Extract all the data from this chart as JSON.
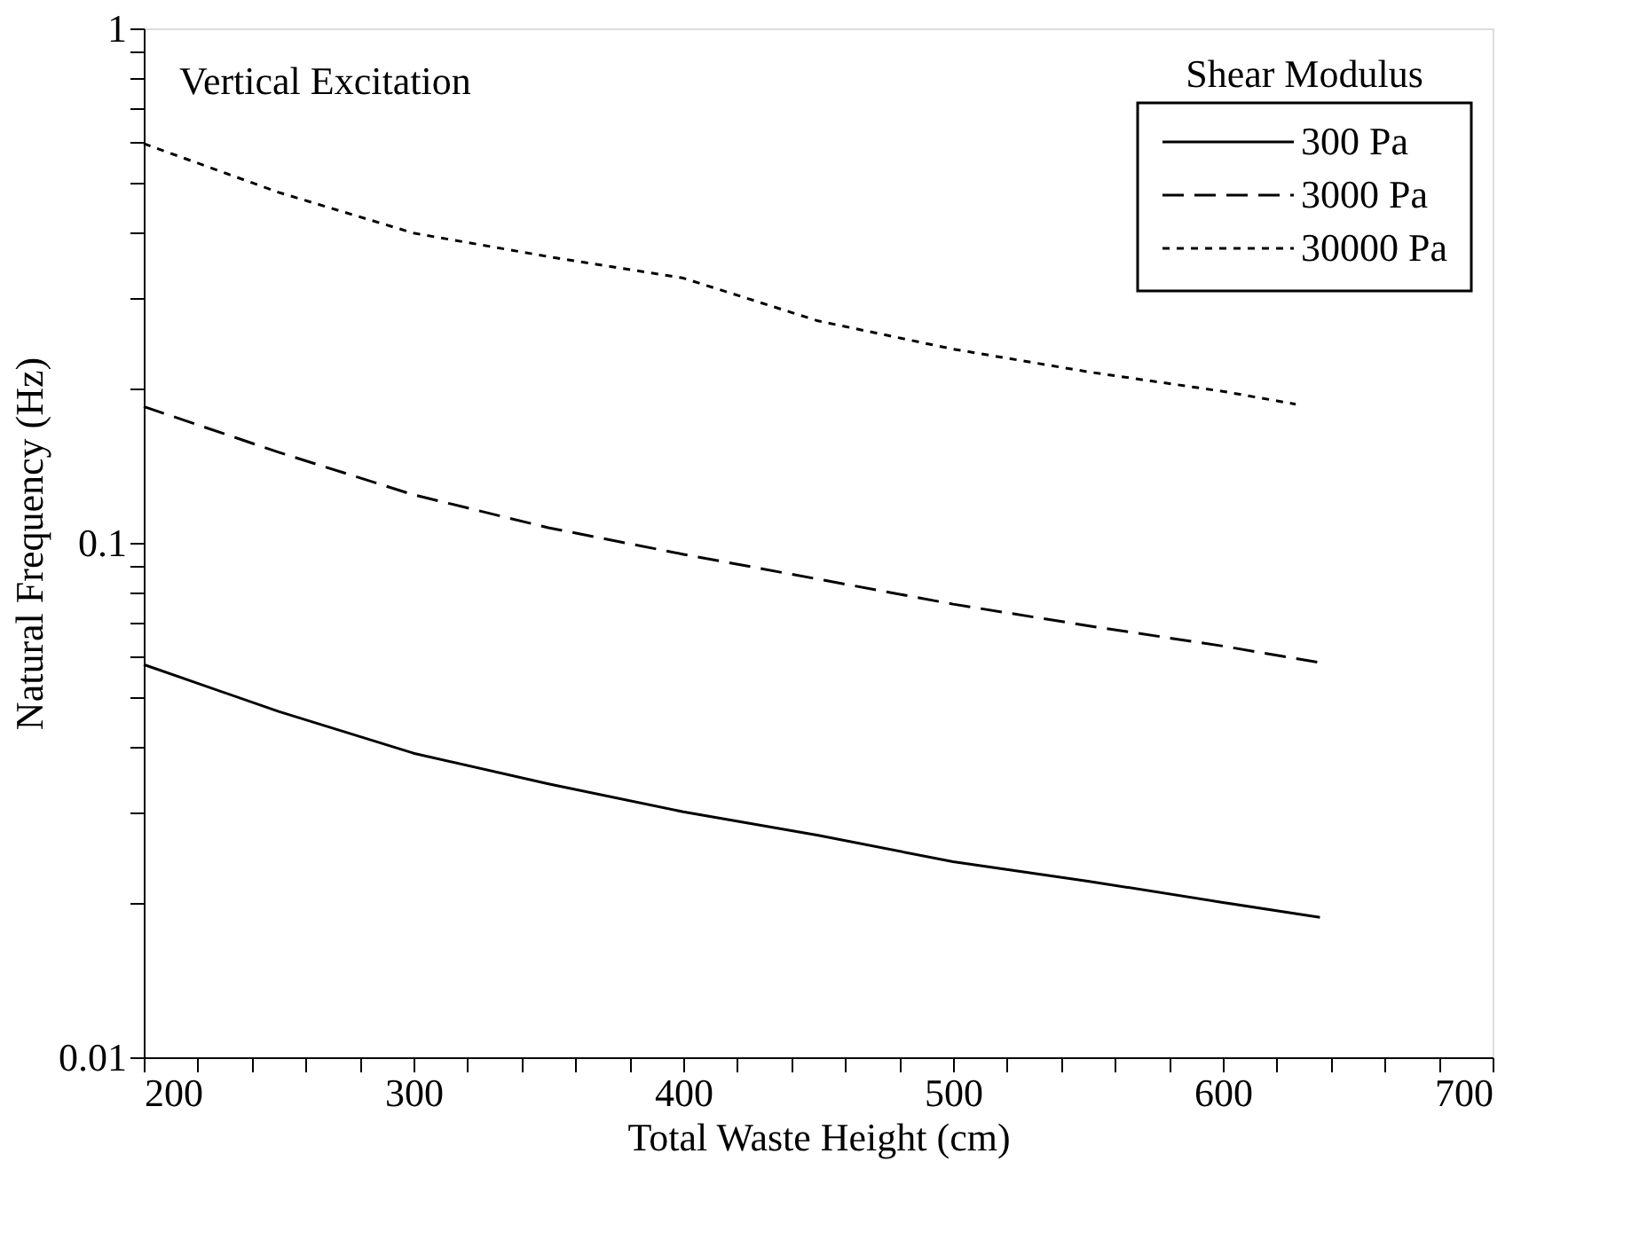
{
  "chart_data": {
    "type": "line",
    "xlabel": "Total Waste Height (cm)",
    "ylabel": "Natural Frequency (Hz)",
    "legend_title": "Shear Modulus",
    "legend": "top right",
    "log": "y",
    "grid": false,
    "marker": "none",
    "annotations": [
      "Vertical Excitation"
    ],
    "xlim": [
      200,
      700
    ],
    "ylim": [
      0.01,
      1
    ],
    "xticks": [
      200,
      {
        "value": 220,
        "label": null
      },
      {
        "value": 240,
        "label": null
      },
      {
        "value": 260,
        "label": null
      },
      {
        "value": 280,
        "label": null
      },
      300,
      {
        "value": 320,
        "label": null
      },
      {
        "value": 340,
        "label": null
      },
      {
        "value": 360,
        "label": null
      },
      {
        "value": 380,
        "label": null
      },
      400,
      {
        "value": 420,
        "label": null
      },
      {
        "value": 440,
        "label": null
      },
      {
        "value": 460,
        "label": null
      },
      {
        "value": 480,
        "label": null
      },
      500,
      {
        "value": 520,
        "label": null
      },
      {
        "value": 540,
        "label": null
      },
      {
        "value": 560,
        "label": null
      },
      {
        "value": 580,
        "label": null
      },
      600,
      {
        "value": 620,
        "label": null
      },
      {
        "value": 640,
        "label": null
      },
      {
        "value": 660,
        "label": null
      },
      {
        "value": 680,
        "label": null
      },
      700
    ],
    "yticks": [
      0.01,
      {
        "value": 0.02,
        "label": null
      },
      {
        "value": 0.03,
        "label": null
      },
      {
        "value": 0.04,
        "label": null
      },
      {
        "value": 0.05,
        "label": null
      },
      {
        "value": 0.06,
        "label": null
      },
      {
        "value": 0.07,
        "label": null
      },
      {
        "value": 0.08,
        "label": null
      },
      {
        "value": 0.09,
        "label": null
      },
      0.1,
      {
        "value": 0.2,
        "label": null
      },
      {
        "value": 0.3,
        "label": null
      },
      {
        "value": 0.4,
        "label": null
      },
      {
        "value": 0.5,
        "label": null
      },
      {
        "value": 0.6,
        "label": null
      },
      {
        "value": 0.7,
        "label": null
      },
      {
        "value": 0.8,
        "label": null
      },
      {
        "value": 0.9,
        "label": null
      },
      1
    ],
    "series": [
      {
        "name": "300 Pa",
        "color": "#000000",
        "line_style": "solid",
        "x": [
          200,
          250,
          300,
          350,
          400,
          450,
          500,
          550,
          600,
          636
        ],
        "values": [
          0.058,
          0.047,
          0.039,
          0.034,
          0.03,
          0.027,
          0.024,
          0.022,
          0.02,
          0.0187
        ]
      },
      {
        "name": "3000 Pa",
        "color": "#000000",
        "line_style": "dashed",
        "x": [
          200,
          250,
          300,
          350,
          400,
          450,
          500,
          550,
          600,
          636
        ],
        "values": [
          0.184,
          0.15,
          0.124,
          0.107,
          0.095,
          0.085,
          0.076,
          0.069,
          0.063,
          0.0585
        ]
      },
      {
        "name": "30000 Pa",
        "color": "#000000",
        "line_style": "dotted",
        "x": [
          200,
          250,
          300,
          350,
          400,
          450,
          500,
          550,
          600,
          627
        ],
        "values": [
          0.597,
          0.48,
          0.4,
          0.36,
          0.327,
          0.27,
          0.238,
          0.215,
          0.197,
          0.186
        ]
      }
    ]
  }
}
